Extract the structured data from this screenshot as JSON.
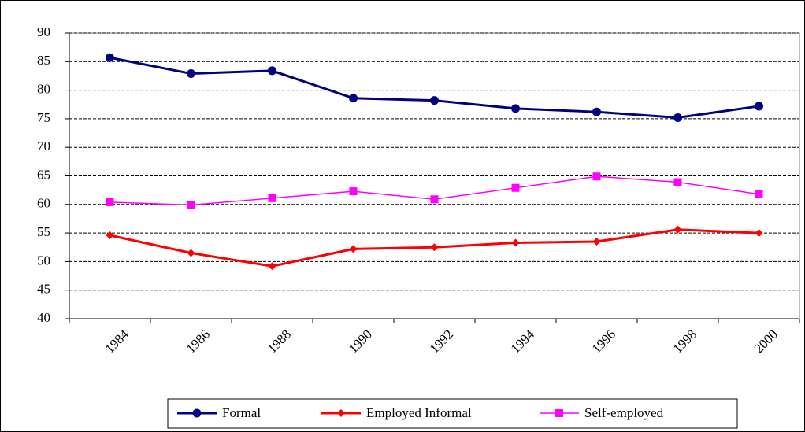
{
  "chart_data": {
    "type": "line",
    "categories": [
      "1984",
      "1986",
      "1988",
      "1990",
      "1992",
      "1994",
      "1996",
      "1998",
      "2000"
    ],
    "series": [
      {
        "name": "Formal",
        "color": "#000080",
        "marker": "circle",
        "values": [
          85.7,
          82.9,
          83.4,
          78.6,
          78.2,
          76.8,
          76.2,
          75.2,
          77.2
        ]
      },
      {
        "name": "Employed Informal",
        "color": "#ff0000",
        "marker": "diamond",
        "values": [
          54.6,
          51.5,
          49.2,
          52.2,
          52.5,
          53.3,
          53.5,
          55.6,
          55.0
        ]
      },
      {
        "name": "Self-employed",
        "color": "#ff00ff",
        "marker": "square",
        "values": [
          60.4,
          59.9,
          61.1,
          62.3,
          60.9,
          62.9,
          64.9,
          63.9,
          61.8
        ]
      }
    ],
    "ylim": [
      40,
      90
    ],
    "yticks": [
      40,
      45,
      50,
      55,
      60,
      65,
      70,
      75,
      80,
      85,
      90
    ],
    "grid": true,
    "legend": "bottom"
  }
}
